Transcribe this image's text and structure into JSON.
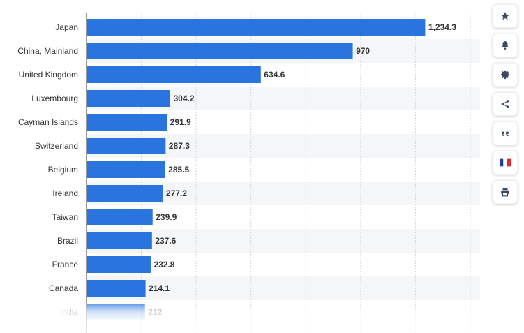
{
  "chart_data": {
    "type": "bar",
    "orientation": "horizontal",
    "categories": [
      "Japan",
      "China, Mainland",
      "United Kingdom",
      "Luxembourg",
      "Cayman Islands",
      "Switzerland",
      "Belgium",
      "Ireland",
      "Taiwan",
      "Brazil",
      "France",
      "Canada",
      "India"
    ],
    "values": [
      1234.3,
      970,
      634.6,
      304.2,
      291.9,
      287.3,
      285.5,
      277.2,
      239.9,
      237.6,
      232.8,
      214.1,
      212
    ],
    "value_labels": [
      "1,234.3",
      "970",
      "634.6",
      "304.2",
      "291.9",
      "287.3",
      "285.5",
      "277.2",
      "239.9",
      "237.6",
      "232.8",
      "214.1",
      "212"
    ],
    "xlim": [
      0,
      1400
    ],
    "x_gridlines": [
      0,
      200,
      400,
      600,
      800,
      1000,
      1200,
      1400
    ],
    "bar_color": "#2a74e0",
    "title": "",
    "xlabel": "",
    "ylabel": ""
  },
  "toolbar": {
    "icons": [
      "star-icon",
      "bell-icon",
      "gear-icon",
      "share-icon",
      "quote-icon",
      "french-flag-icon",
      "print-icon"
    ]
  },
  "colors": {
    "grid": "#d4d6da",
    "stripe": "#f5f6f8",
    "icon": "#3b4a63",
    "flag_blue": "#1f3fa8",
    "flag_red": "#e5262b"
  }
}
